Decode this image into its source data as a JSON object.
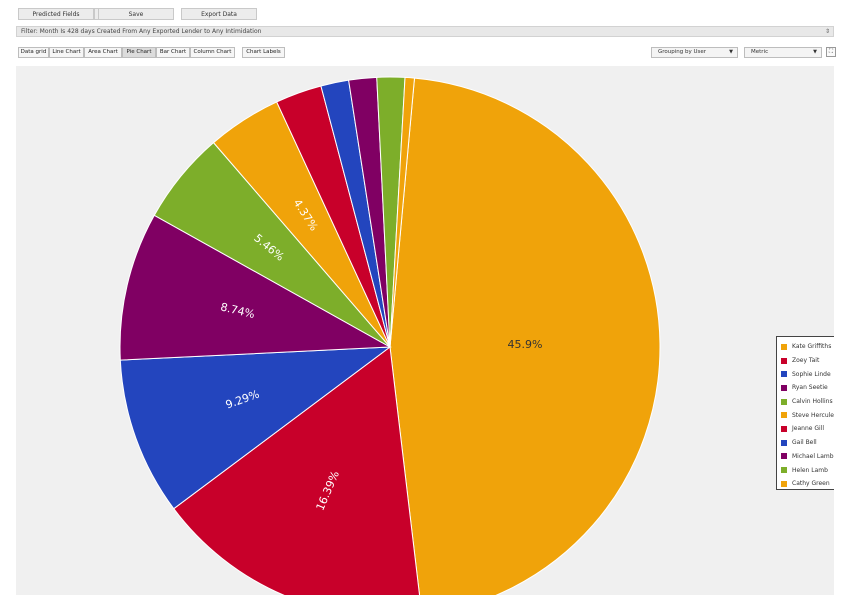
{
  "toolbar": {
    "buttons": [
      "Predicted Fields",
      "Save",
      "Export Data"
    ]
  },
  "filter_bar": {
    "text": "Filter: Month Is 428 days Created From Any Exported Lender to Any Intimidation",
    "expand_icon": "chevron-expand-icon"
  },
  "view_tabs": [
    {
      "label": "Data grid"
    },
    {
      "label": "Line Chart"
    },
    {
      "label": "Area Chart"
    },
    {
      "label": "Pie Chart"
    },
    {
      "label": "Bar Chart"
    },
    {
      "label": "Column Chart"
    }
  ],
  "active_tab": "Pie Chart",
  "chart_labels_button": "Chart Labels",
  "grouping_select": {
    "value": "Grouping by User"
  },
  "metric_select": {
    "value": "Metric"
  },
  "fullscreen_icon": "fullscreen-icon",
  "chart_data": {
    "type": "pie",
    "slices": [
      {
        "name": "Kate Griffiths",
        "value": 45.9,
        "label": "45.9%",
        "color": "#F0A30A"
      },
      {
        "name": "Zoey Tait",
        "value": 16.39,
        "label": "16.39%",
        "color": "#C8002A"
      },
      {
        "name": "Sophie Linde",
        "value": 9.29,
        "label": "9.29%",
        "color": "#2345BE"
      },
      {
        "name": "Ryan Seetie",
        "value": 8.74,
        "label": "8.74%",
        "color": "#800063"
      },
      {
        "name": "Calvin Hollins",
        "value": 5.46,
        "label": "5.46%",
        "color": "#7DAE2A"
      },
      {
        "name": "Steve Hercules",
        "value": 4.37,
        "label": "4.37%",
        "color": "#F0A30A"
      },
      {
        "name": "Jeanne Gill",
        "value": 2.73,
        "label": "",
        "color": "#C8002A"
      },
      {
        "name": "Gail Bell",
        "value": 1.64,
        "label": "",
        "color": "#2345BE"
      },
      {
        "name": "Michael Lamb",
        "value": 1.64,
        "label": "",
        "color": "#800063"
      },
      {
        "name": "Helen Lamb",
        "value": 1.64,
        "label": "",
        "color": "#7DAE2A"
      },
      {
        "name": "Cathy Green",
        "value": 0.55,
        "label": "",
        "color": "#F0A30A"
      }
    ],
    "legend_position": "right"
  }
}
